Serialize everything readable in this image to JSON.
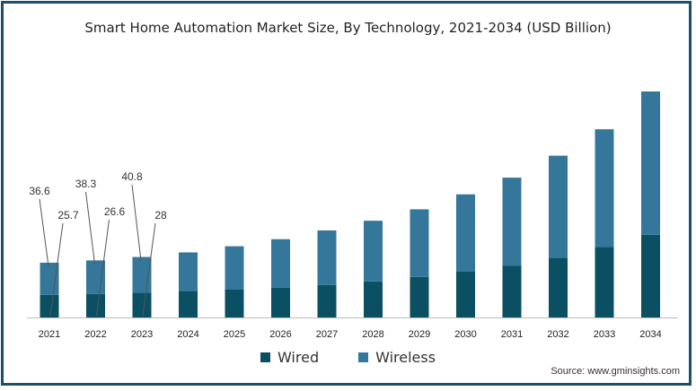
{
  "chart_data": {
    "type": "bar",
    "stacked": true,
    "title": "Smart Home Automation Market Size, By Technology, 2021-2034 (USD Billion)",
    "categories": [
      "2021",
      "2022",
      "2023",
      "2024",
      "2025",
      "2026",
      "2027",
      "2028",
      "2029",
      "2030",
      "2031",
      "2032",
      "2033",
      "2034"
    ],
    "series": [
      {
        "name": "Wired",
        "color": "#0b4f63",
        "values": [
          25.7,
          26.6,
          28,
          30,
          32,
          34,
          37,
          41,
          46,
          52,
          59,
          68,
          80,
          94
        ]
      },
      {
        "name": "Wireless",
        "color": "#35779a",
        "values": [
          36.6,
          38.3,
          40.8,
          44,
          49,
          55,
          62,
          69,
          77,
          88,
          100,
          116,
          134,
          163
        ]
      }
    ],
    "data_labels": [
      {
        "category": "2021",
        "wireless": "36.6",
        "wired": "25.7"
      },
      {
        "category": "2022",
        "wireless": "38.3",
        "wired": "26.6"
      },
      {
        "category": "2023",
        "wireless": "40.8",
        "wired": "28"
      }
    ],
    "grid": false,
    "legend_position": "bottom"
  },
  "source_text": "Source: www.gminsights.com"
}
